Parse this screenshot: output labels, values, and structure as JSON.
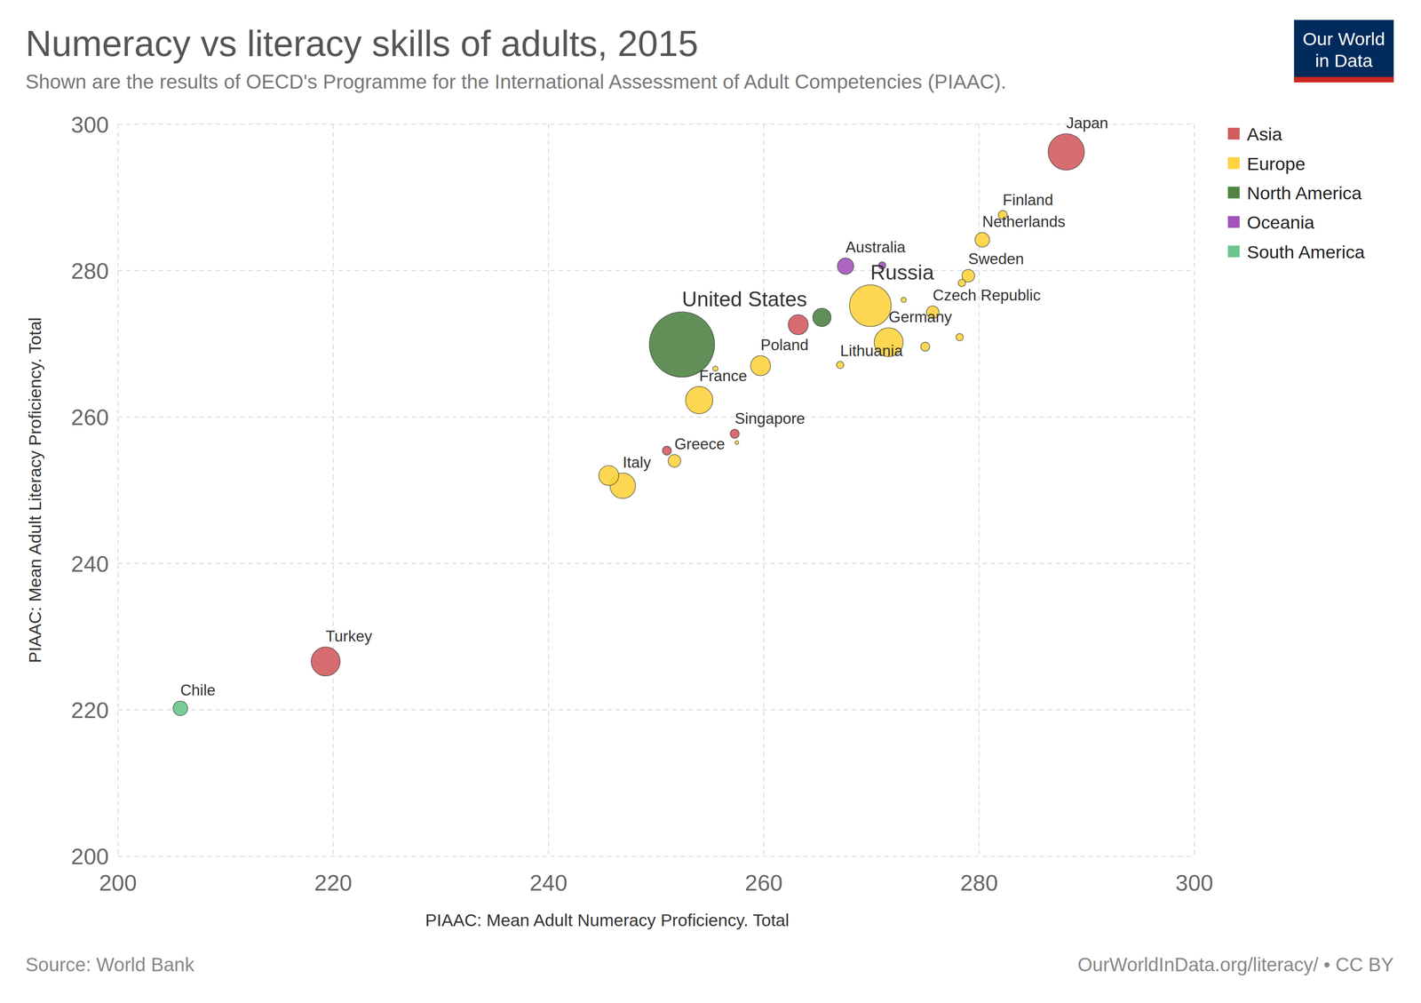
{
  "chart_data": {
    "type": "scatter",
    "title": "Numeracy vs literacy skills of adults, 2015",
    "subtitle": "Shown are the results of OECD's Programme for the International Assessment of Adult Competencies (PIAAC).",
    "x_label": "PIAAC: Mean Adult Numeracy Proficiency. Total",
    "y_label": "PIAAC: Mean Adult Literacy Proficiency. Total",
    "source": "Source: World Bank",
    "credit": "OurWorldInData.org/literacy/ • CC BY",
    "logo": [
      "Our World",
      "in Data"
    ],
    "xlim": [
      200,
      300
    ],
    "xticks": [
      200,
      220,
      240,
      260,
      280,
      300
    ],
    "ylim": [
      200,
      300
    ],
    "yticks": [
      200,
      220,
      240,
      260,
      280,
      300
    ],
    "grid": true,
    "legend": "right",
    "marker": "circle",
    "series": [
      {
        "name": "Asia",
        "color": "#d35c60",
        "labels": [
          "Japan",
          "Turkey",
          null,
          "Singapore",
          null
        ],
        "x": [
          288.1,
          219.3,
          263.2,
          257.3,
          251.0
        ],
        "values": [
          296.2,
          226.6,
          272.6,
          257.7,
          255.4
        ],
        "sizes": [
          99,
          63,
          30,
          6,
          6
        ]
      },
      {
        "name": "Europe",
        "color": "#fdd33f",
        "labels": [
          "Russia",
          "Germany",
          "France",
          "Italy",
          null,
          "Poland",
          "Netherlands",
          "Sweden",
          "Czech Republic",
          "Greece",
          "Finland",
          null,
          null,
          null,
          "Lithuania",
          null,
          null,
          null
        ],
        "x": [
          269.9,
          271.6,
          254.0,
          246.9,
          245.6,
          259.7,
          280.3,
          279.0,
          275.7,
          251.7,
          282.2,
          275.0,
          278.4,
          278.2,
          267.1,
          273.0,
          255.5,
          257.5
        ],
        "values": [
          275.2,
          270.2,
          262.3,
          250.6,
          252.0,
          267.0,
          284.2,
          279.3,
          274.3,
          254.0,
          287.6,
          269.6,
          278.3,
          270.9,
          267.1,
          276.0,
          266.6,
          256.5
        ],
        "sizes": [
          131,
          63,
          56,
          49,
          30,
          30,
          16,
          12,
          12,
          12,
          6,
          6,
          4,
          4,
          4,
          2,
          2,
          1
        ]
      },
      {
        "name": "North America",
        "color": "#4f8445",
        "labels": [
          "United States",
          null
        ],
        "x": [
          252.4,
          265.4
        ],
        "values": [
          269.9,
          273.6
        ],
        "sizes": [
          321,
          25
        ]
      },
      {
        "name": "Oceania",
        "color": "#a353bb",
        "labels": [
          "Australia",
          null
        ],
        "x": [
          267.6,
          271.0
        ],
        "values": [
          280.6,
          280.7
        ],
        "sizes": [
          20,
          4
        ]
      },
      {
        "name": "South America",
        "color": "#6cc58c",
        "labels": [
          "Chile"
        ],
        "x": [
          205.8
        ],
        "values": [
          220.2
        ],
        "sizes": [
          16
        ]
      }
    ]
  }
}
